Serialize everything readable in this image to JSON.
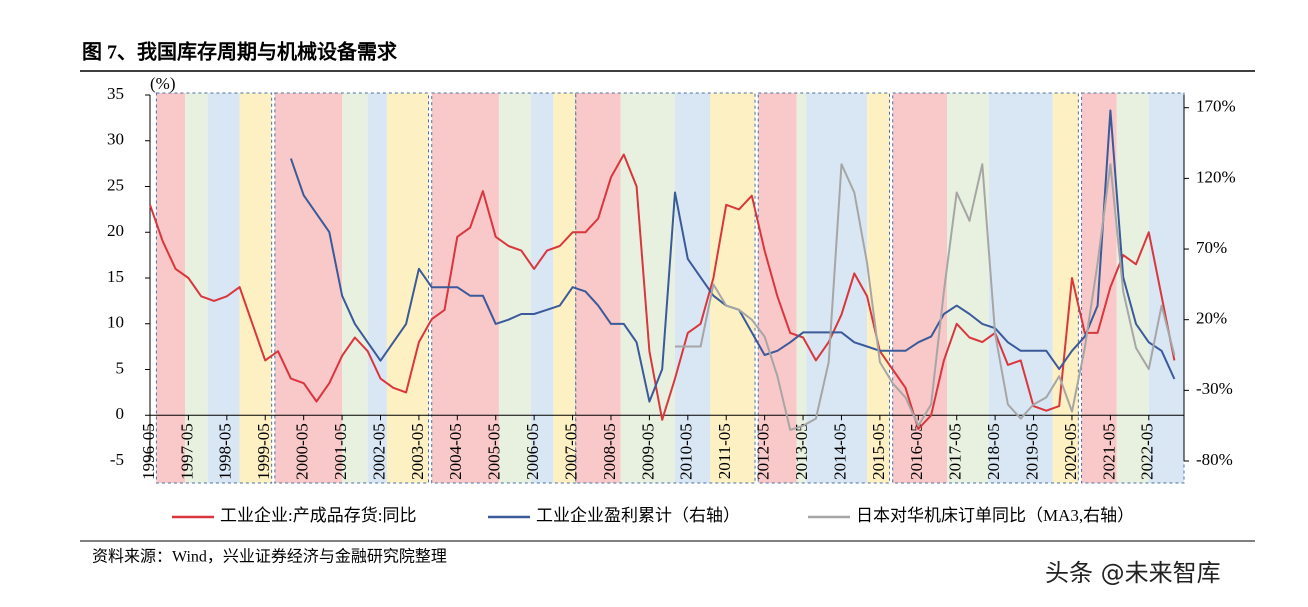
{
  "chart_data": {
    "type": "line",
    "title": "图 7、我国库存周期与机械设备需求",
    "y_unit": "(%)",
    "source": "资料来源：Wind，兴业证券经济与金融研究院整理",
    "watermark": "头条 @未来智库",
    "xlim": [
      "1996-05",
      "2023-04"
    ],
    "xticks": [
      "1996-05",
      "1997-05",
      "1998-05",
      "1999-05",
      "2000-05",
      "2001-05",
      "2002-05",
      "2003-05",
      "2004-05",
      "2005-05",
      "2006-05",
      "2007-05",
      "2008-05",
      "2009-05",
      "2010-05",
      "2011-05",
      "2012-05",
      "2013-05",
      "2014-05",
      "2015-05",
      "2016-05",
      "2017-05",
      "2018-05",
      "2019-05",
      "2020-05",
      "2021-05",
      "2022-05"
    ],
    "ylim": [
      -5,
      35
    ],
    "yticks": [
      -5,
      0,
      5,
      10,
      15,
      20,
      25,
      30,
      35
    ],
    "y2lim": [
      -80,
      179
    ],
    "y2ticks": [
      {
        "value": -80,
        "label": "-80%"
      },
      {
        "value": -30,
        "label": "-30%"
      },
      {
        "value": 20,
        "label": "20%"
      },
      {
        "value": 70,
        "label": "70%"
      },
      {
        "value": 120,
        "label": "120%"
      },
      {
        "value": 170,
        "label": "170%"
      }
    ],
    "phase_colors": [
      "#f9c8c8",
      "#e8f0df",
      "#d9e6f3",
      "#fdf0c3"
    ],
    "cycles": [
      [
        [
          "1996-07",
          "1997-04"
        ],
        [
          "1997-04",
          "1997-11"
        ],
        [
          "1997-11",
          "1998-09"
        ],
        [
          "1998-09",
          "1999-07"
        ]
      ],
      [
        [
          "1999-08",
          "2001-05"
        ],
        [
          "2001-05",
          "2002-01"
        ],
        [
          "2002-01",
          "2002-07"
        ],
        [
          "2002-07",
          "2003-08"
        ]
      ],
      [
        [
          "2003-09",
          "2005-06"
        ],
        [
          "2005-06",
          "2006-04"
        ],
        [
          "2006-04",
          "2006-11"
        ],
        [
          "2006-11",
          "2007-06"
        ]
      ],
      [
        [
          "2007-06",
          "2008-08"
        ],
        [
          "2008-08",
          "2010-01"
        ],
        [
          "2010-01",
          "2010-12"
        ],
        [
          "2010-12",
          "2012-02"
        ]
      ],
      [
        [
          "2012-03",
          "2013-03"
        ],
        [
          "2013-03",
          "2013-06"
        ],
        [
          "2013-06",
          "2015-01"
        ],
        [
          "2015-01",
          "2015-08"
        ]
      ],
      [
        [
          "2015-09",
          "2017-02"
        ],
        [
          "2017-02",
          "2018-03"
        ],
        [
          "2018-03",
          "2019-11"
        ],
        [
          "2019-11",
          "2020-07"
        ]
      ],
      [
        [
          "2020-08",
          "2021-07"
        ],
        [
          "2021-07",
          "2022-05"
        ],
        [
          "2022-05",
          "2023-04"
        ]
      ]
    ],
    "x": [
      "1996-05",
      "1996-09",
      "1997-01",
      "1997-05",
      "1997-09",
      "1998-01",
      "1998-05",
      "1998-09",
      "1999-01",
      "1999-05",
      "1999-09",
      "2000-01",
      "2000-05",
      "2000-09",
      "2001-01",
      "2001-05",
      "2001-09",
      "2002-01",
      "2002-05",
      "2002-09",
      "2003-01",
      "2003-05",
      "2003-09",
      "2004-01",
      "2004-05",
      "2004-09",
      "2005-01",
      "2005-05",
      "2005-09",
      "2006-01",
      "2006-05",
      "2006-09",
      "2007-01",
      "2007-05",
      "2007-09",
      "2008-01",
      "2008-05",
      "2008-09",
      "2009-01",
      "2009-05",
      "2009-09",
      "2010-01",
      "2010-05",
      "2010-09",
      "2011-01",
      "2011-05",
      "2011-09",
      "2012-01",
      "2012-05",
      "2012-09",
      "2013-01",
      "2013-05",
      "2013-09",
      "2014-01",
      "2014-05",
      "2014-09",
      "2015-01",
      "2015-05",
      "2015-09",
      "2016-01",
      "2016-05",
      "2016-09",
      "2017-01",
      "2017-05",
      "2017-09",
      "2018-01",
      "2018-05",
      "2018-09",
      "2019-01",
      "2019-05",
      "2019-09",
      "2020-01",
      "2020-05",
      "2020-09",
      "2021-01",
      "2021-05",
      "2021-09",
      "2022-01",
      "2022-05",
      "2022-09",
      "2023-01"
    ],
    "series": [
      {
        "name": "工业企业:产成品存货:同比",
        "color": "#d9363e",
        "values": [
          23,
          19,
          16,
          15,
          13,
          12.5,
          13,
          14,
          10,
          6,
          7,
          4,
          3.5,
          1.5,
          3.5,
          6.5,
          8.5,
          7,
          4,
          3,
          2.5,
          8,
          10.5,
          11.5,
          19.5,
          20.5,
          24.5,
          19.5,
          18.5,
          18,
          16,
          18,
          18.5,
          20,
          20,
          21.5,
          26,
          28.5,
          25,
          7,
          -0.5,
          4,
          9,
          10,
          15,
          23,
          22.5,
          24,
          18,
          13,
          9,
          8.5,
          6,
          8,
          11,
          15.5,
          13,
          7,
          5,
          3,
          -1.5,
          0,
          6,
          10,
          8.5,
          8,
          9,
          5.5,
          6,
          1,
          0.5,
          1,
          15,
          9,
          9,
          14,
          17.5,
          16.5,
          20,
          13,
          6
        ]
      },
      {
        "name": "工业企业盈利累计（右轴）",
        "color": "#3b5a9a",
        "axis": "y2",
        "values": [
          null,
          null,
          null,
          null,
          null,
          null,
          null,
          null,
          null,
          null,
          null,
          134,
          108,
          95,
          82,
          37,
          17,
          4,
          -9,
          4,
          17,
          56,
          43,
          43,
          43,
          37,
          37,
          17,
          20,
          24,
          24,
          27,
          30,
          43,
          40,
          30,
          17,
          17,
          4,
          -38,
          -15,
          110,
          63,
          50,
          37,
          30,
          27,
          11,
          -5,
          -2,
          4,
          11,
          11,
          11,
          11,
          4,
          1,
          -2,
          -2,
          -2,
          4,
          8,
          24,
          30,
          24,
          17,
          14,
          4,
          -2,
          -2,
          -2,
          -15,
          -2,
          8,
          30,
          168,
          50,
          17,
          4,
          -2,
          -22
        ]
      },
      {
        "name": "日本对华机床订单同比（MA3,右轴）",
        "color": "#a6a6a6",
        "axis": "y2",
        "values": [
          null,
          null,
          null,
          null,
          null,
          null,
          null,
          null,
          null,
          null,
          null,
          null,
          null,
          null,
          null,
          null,
          null,
          null,
          null,
          null,
          null,
          null,
          null,
          null,
          null,
          null,
          null,
          null,
          null,
          null,
          null,
          null,
          null,
          null,
          null,
          null,
          null,
          null,
          null,
          null,
          null,
          1,
          1,
          1,
          45,
          30,
          27,
          20,
          8,
          -20,
          -58,
          -55,
          -50,
          -10,
          130,
          110,
          60,
          -10,
          -25,
          -35,
          -55,
          -40,
          40,
          110,
          90,
          130,
          10,
          -40,
          -50,
          -40,
          -35,
          -20,
          -45,
          0,
          60,
          130,
          40,
          0,
          -15,
          30,
          -5
        ]
      }
    ]
  }
}
